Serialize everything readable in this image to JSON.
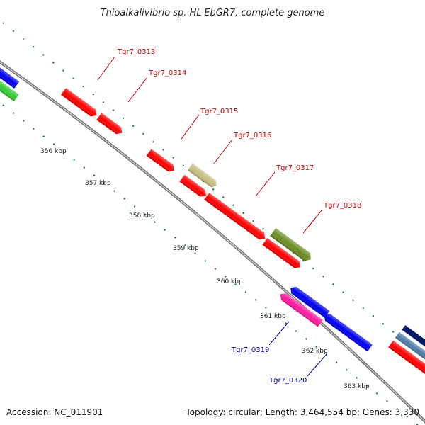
{
  "title": "Thioalkalivibrio sp. HL-EbGR7, complete genome",
  "footer": {
    "accession": "Accession: NC_011901",
    "topology": "Topology: circular; Length: 3,464,554 bp; Genes: 3,330"
  },
  "ticks": [
    "356 kbp",
    "357 kbp",
    "358 kbp",
    "359 kbp",
    "360 kbp",
    "361 kbp",
    "362 kbp",
    "363 kbp"
  ],
  "genes_top": [
    "Tgr7_0313",
    "Tgr7_0314",
    "Tgr7_0315",
    "Tgr7_0316",
    "Tgr7_0317",
    "Tgr7_0318"
  ],
  "genes_bottom": [
    "Tgr7_0319",
    "Tgr7_0320"
  ],
  "colors": {
    "backbone": "#8c8c8c",
    "grid_dots": "#1a7a1a",
    "red": "#ff0000",
    "blue": "#0000ee",
    "green": "#33cc33",
    "tan": "#c8c080",
    "olive": "#6b8e23",
    "magenta": "#ff1aa0",
    "navy": "#001a66",
    "steel": "#4f7fa8",
    "label_top": "#d40000",
    "label_bottom": "#0000aa"
  }
}
